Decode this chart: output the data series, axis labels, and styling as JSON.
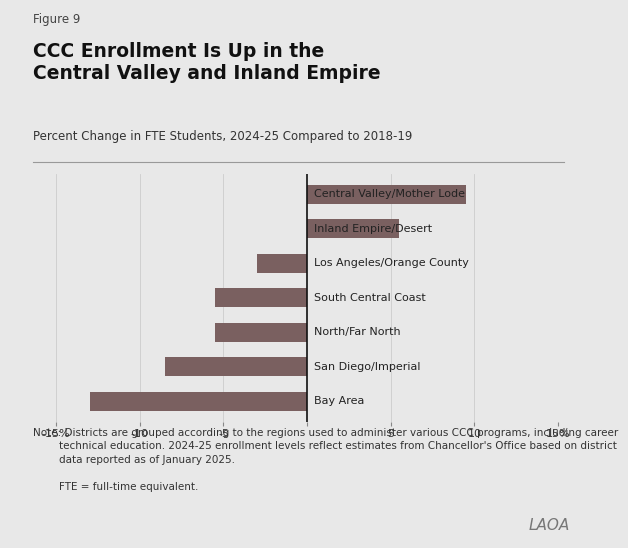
{
  "figure_label": "Figure 9",
  "title": "CCC Enrollment Is Up in the\nCentral Valley and Inland Empire",
  "subtitle": "Percent Change in FTE Students, 2024-25 Compared to 2018-19",
  "categories": [
    "Bay Area",
    "San Diego/Imperial",
    "North/Far North",
    "South Central Coast",
    "Los Angeles/Orange County",
    "Inland Empire/Desert",
    "Central Valley/Mother Lode"
  ],
  "values": [
    -13.0,
    -8.5,
    -5.5,
    -5.5,
    -3.0,
    5.5,
    9.5
  ],
  "bar_color": "#7a6060",
  "xlim": [
    -15,
    15
  ],
  "xticks": [
    -15,
    -10,
    -5,
    0,
    5,
    10,
    15
  ],
  "xticklabels": [
    "-15%",
    "-10",
    "-5",
    "",
    "5",
    "10",
    "15%"
  ],
  "background_color": "#e8e8e8",
  "note_line1": "Note: Districts are grouped according to the regions used to administer various CCC programs, including career",
  "note_line2": "        technical education. 2024-25 enrollment levels reflect estimates from Chancellor's Office based on district",
  "note_line3": "        data reported as of January 2025.",
  "note_line4": "",
  "note_line5": "        FTE = full-time equivalent.",
  "watermark": "LAOA"
}
